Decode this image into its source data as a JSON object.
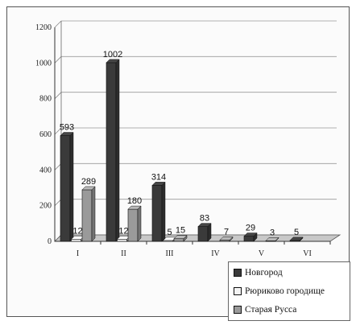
{
  "chart_data": {
    "type": "bar",
    "categories": [
      "I",
      "II",
      "III",
      "IV",
      "V",
      "VI"
    ],
    "series": [
      {
        "name": "Новгород",
        "values": [
          593,
          1002,
          314,
          83,
          29,
          5
        ],
        "labels": [
          "593",
          "1002",
          "314",
          "83",
          "29",
          "5"
        ],
        "color": "#3a3a3a"
      },
      {
        "name": "Рюриково городище",
        "values": [
          12,
          12,
          5,
          0,
          0,
          0
        ],
        "labels": [
          "12",
          "12",
          "5",
          "",
          "",
          ""
        ],
        "color": "#f4f4f4"
      },
      {
        "name": "Старая Русса",
        "values": [
          289,
          180,
          15,
          7,
          3,
          0
        ],
        "labels": [
          "289",
          "180",
          "15",
          "7",
          "3",
          ""
        ],
        "color": "#9a9a9a"
      }
    ],
    "yticks": [
      "0",
      "200",
      "400",
      "600",
      "800",
      "1000",
      "1200"
    ],
    "ylim": [
      0,
      1200
    ],
    "grid": true,
    "legend_position": "bottom-right"
  }
}
